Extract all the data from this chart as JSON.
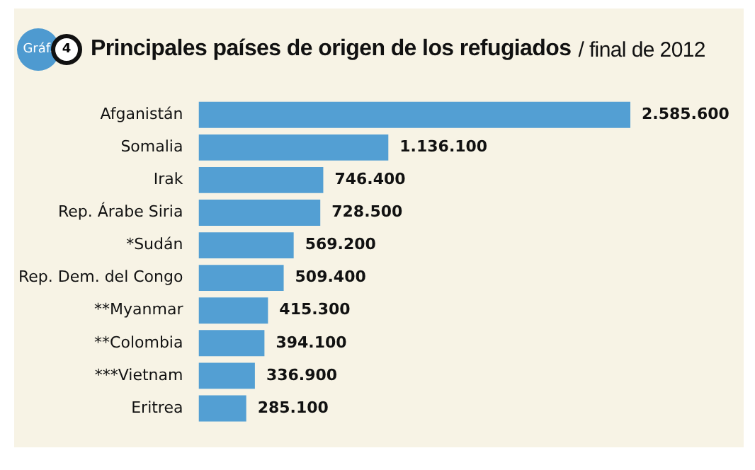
{
  "chart_data": {
    "type": "bar",
    "orientation": "horizontal",
    "title": "Principales países de origen de los refugiados",
    "subtitle": "/ final de 2012",
    "annotations": [
      "Gráf.",
      "4"
    ],
    "categories": [
      "Afganistán",
      "Somalia",
      "Irak",
      "Rep. Árabe Siria",
      "*Sudán",
      "Rep. Dem. del Congo",
      "**Myanmar",
      "**Colombia",
      "***Vietnam",
      "Eritrea"
    ],
    "values": [
      2585600,
      1136100,
      746400,
      728500,
      569200,
      509400,
      415300,
      394100,
      336900,
      285100
    ],
    "value_labels": [
      "2.585.600",
      "1.136.100",
      "746.400",
      "728.500",
      "569.200",
      "509.400",
      "415.300",
      "394.100",
      "336.900",
      "285.100"
    ],
    "color": "#539fd3"
  }
}
